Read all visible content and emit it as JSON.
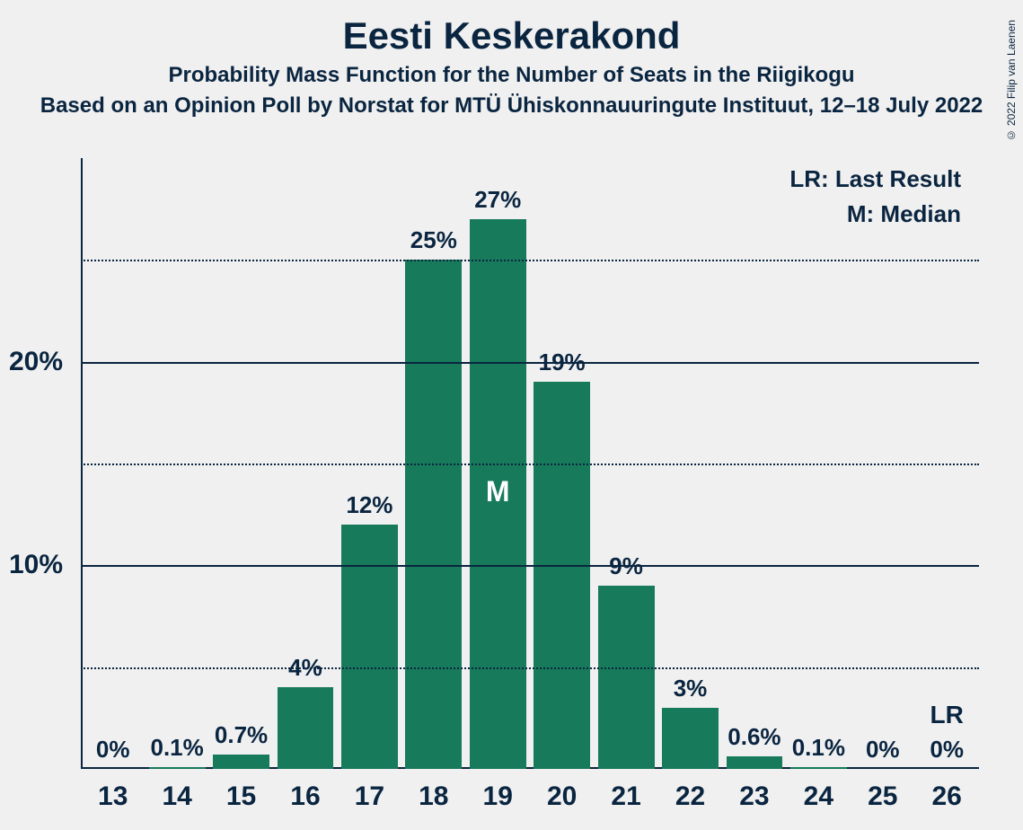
{
  "copyright": "© 2022 Filip van Laenen",
  "title": "Eesti Keskerakond",
  "subtitle": "Probability Mass Function for the Number of Seats in the Riigikogu",
  "source_line": "Based on an Opinion Poll by Norstat for MTÜ Ühiskonnauuringute Instituut, 12–18 July 2022",
  "legend": {
    "lr": "LR: Last Result",
    "m": "M: Median"
  },
  "chart": {
    "type": "bar",
    "bar_color": "#177a5b",
    "axis_color": "#0a2540",
    "background_color": "#f0f0f0",
    "ymax": 30,
    "y_major_ticks": [
      10,
      20
    ],
    "y_minor_ticks": [
      5,
      15,
      25
    ],
    "y_tick_labels": {
      "10": "10%",
      "20": "20%"
    },
    "median_seat": 19,
    "median_label": "M",
    "lr_seat": 26,
    "lr_label": "LR",
    "label_fontsize": 26,
    "axis_fontsize": 30,
    "title_fontsize": 42,
    "bars": [
      {
        "seat": 13,
        "value": 0,
        "label": "0%"
      },
      {
        "seat": 14,
        "value": 0.1,
        "label": "0.1%"
      },
      {
        "seat": 15,
        "value": 0.7,
        "label": "0.7%"
      },
      {
        "seat": 16,
        "value": 4,
        "label": "4%"
      },
      {
        "seat": 17,
        "value": 12,
        "label": "12%"
      },
      {
        "seat": 18,
        "value": 25,
        "label": "25%"
      },
      {
        "seat": 19,
        "value": 27,
        "label": "27%"
      },
      {
        "seat": 20,
        "value": 19,
        "label": "19%"
      },
      {
        "seat": 21,
        "value": 9,
        "label": "9%"
      },
      {
        "seat": 22,
        "value": 3,
        "label": "3%"
      },
      {
        "seat": 23,
        "value": 0.6,
        "label": "0.6%"
      },
      {
        "seat": 24,
        "value": 0.1,
        "label": "0.1%"
      },
      {
        "seat": 25,
        "value": 0,
        "label": "0%"
      },
      {
        "seat": 26,
        "value": 0,
        "label": "0%"
      }
    ]
  }
}
